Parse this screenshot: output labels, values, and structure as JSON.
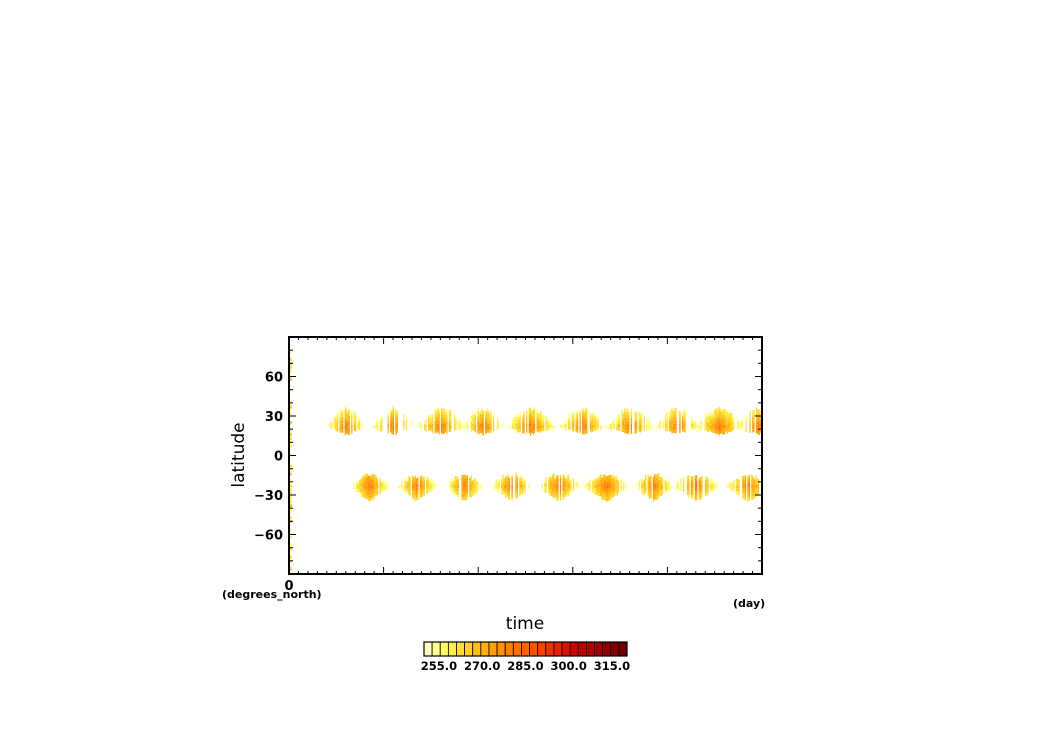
{
  "chart_data": {
    "type": "heatmap",
    "title": "",
    "xlabel": "time",
    "ylabel": "latitude",
    "x_unit": "(day)",
    "y_unit": "(degrees_north)",
    "x_tick_labels": [
      "0"
    ],
    "y_ticks": [
      -60,
      -30,
      0,
      30,
      60
    ],
    "y_tick_labels": [
      "−60",
      "−30",
      "0",
      "30",
      "60"
    ],
    "ylim": [
      -90,
      90
    ],
    "grid": false,
    "colorbar": {
      "placement": "bottom",
      "tick_labels": [
        "255.0",
        "270.0",
        "285.0",
        "300.0",
        "315.0"
      ],
      "colors": [
        "#ffffc0",
        "#ffff90",
        "#ffff60",
        "#fff040",
        "#ffe030",
        "#ffd020",
        "#ffc010",
        "#ffb000",
        "#ffa000",
        "#ff9000",
        "#ff8000",
        "#ff7000",
        "#ff6000",
        "#ff5000",
        "#f84000",
        "#f03000",
        "#e82000",
        "#e01000",
        "#d00000",
        "#c00000",
        "#b00000",
        "#a00000",
        "#900000",
        "#800000",
        "#700000"
      ]
    },
    "series": [
      {
        "band": "north",
        "lat_min": 15,
        "lat_max": 35,
        "peak_lat": 22,
        "peak_value": 290,
        "blob_centers_x_fraction": [
          0.12,
          0.22,
          0.32,
          0.41,
          0.51,
          0.62,
          0.72,
          0.82,
          0.91,
          0.99
        ]
      },
      {
        "band": "south",
        "lat_min": -38,
        "lat_max": -15,
        "peak_lat": -23,
        "peak_value": 288,
        "blob_centers_x_fraction": [
          0.17,
          0.27,
          0.37,
          0.47,
          0.57,
          0.67,
          0.77,
          0.86,
          0.97
        ]
      }
    ]
  }
}
